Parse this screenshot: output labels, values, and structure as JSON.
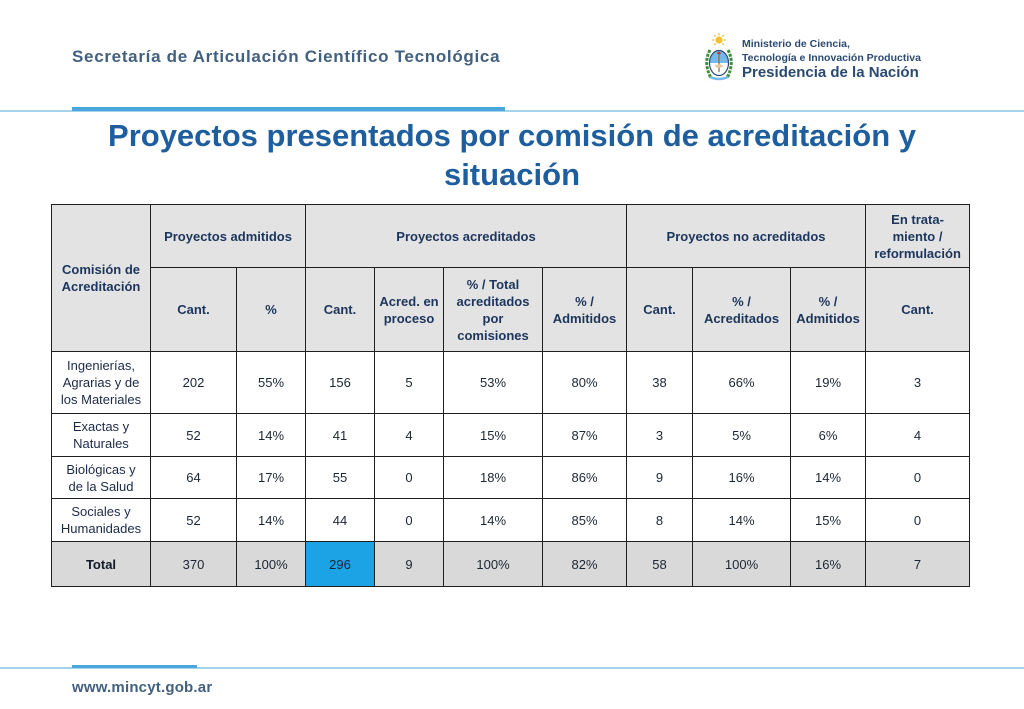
{
  "header": {
    "organization": "Secretaría de Articulación Científico Tecnológica",
    "ministry_logo": {
      "icon": "coat-of-arms-icon",
      "line1": "Ministerio de Ciencia,",
      "line2": "Tecnología e Innovación Productiva",
      "line3": "Presidencia de la Nación"
    }
  },
  "title": "Proyectos presentados por comisión de acreditación y situación",
  "table": {
    "headers": {
      "commission": "Comisión de\nAcreditación",
      "admitted": "Proyectos admitidos",
      "accredited": "Proyectos acreditados",
      "not_accredited": "Proyectos no acreditados",
      "in_treatment": "En trata-\nmiento /\nreformulación"
    },
    "subheaders": [
      "Cant.",
      "%",
      "Cant.",
      "Acred. en\nproceso",
      "% / Total\nacreditados\npor\ncomisiones",
      "% /\nAdmitidos",
      "Cant.",
      "% /\nAcreditados",
      "% /\nAdmitidos",
      "Cant."
    ],
    "rows": [
      {
        "label": "Ingenierías,\nAgrarias y de\nlos Materiales",
        "values": [
          "202",
          "55%",
          "156",
          "5",
          "53%",
          "80%",
          "38",
          "66%",
          "19%",
          "3"
        ]
      },
      {
        "label": "Exactas y\nNaturales",
        "values": [
          "52",
          "14%",
          "41",
          "4",
          "15%",
          "87%",
          "3",
          "5%",
          "6%",
          "4"
        ]
      },
      {
        "label": "Biológicas y\nde la Salud",
        "values": [
          "64",
          "17%",
          "55",
          "0",
          "18%",
          "86%",
          "9",
          "16%",
          "14%",
          "0"
        ]
      },
      {
        "label": "Sociales y\nHumanidades",
        "values": [
          "52",
          "14%",
          "44",
          "0",
          "14%",
          "85%",
          "8",
          "14%",
          "15%",
          "0"
        ]
      }
    ],
    "total": {
      "label": "Total",
      "values": [
        "370",
        "100%",
        "296",
        "9",
        "100%",
        "82%",
        "58",
        "100%",
        "16%",
        "7"
      ]
    }
  },
  "footer": {
    "url": "www.mincyt.gob.ar"
  },
  "colors": {
    "title": "#1e5e9e",
    "org_text": "#42607f",
    "logo_text": "#2a4a72",
    "accent_line": "#4aa6db",
    "accent_line_light": "#a6d3ec",
    "table_header_bg": "#e3e3e3",
    "total_row_bg": "#d9d9d9",
    "highlight_cell_bg": "#1ca3e6"
  }
}
